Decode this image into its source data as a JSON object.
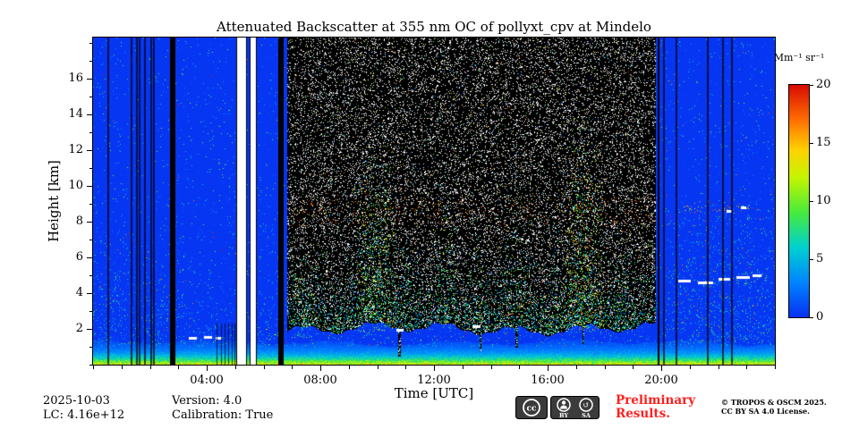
{
  "chart_data": {
    "type": "heatmap",
    "title": "Attenuated Backscatter at 355 nm OC of pollyxt_cpv at Mindelo",
    "xlabel": "Time [UTC]",
    "ylabel": "Height [km]",
    "xlim": [
      0,
      24
    ],
    "ylim": [
      0,
      18.3
    ],
    "x_ticks": [
      {
        "t": 4,
        "label": "04:00"
      },
      {
        "t": 8,
        "label": "08:00"
      },
      {
        "t": 12,
        "label": "12:00"
      },
      {
        "t": 16,
        "label": "16:00"
      },
      {
        "t": 20,
        "label": "20:00"
      }
    ],
    "x_minor_step_hours": 1,
    "y_ticks": [
      {
        "h": 2,
        "label": "2"
      },
      {
        "h": 4,
        "label": "4"
      },
      {
        "h": 6,
        "label": "6"
      },
      {
        "h": 8,
        "label": "8"
      },
      {
        "h": 10,
        "label": "10"
      },
      {
        "h": 12,
        "label": "12"
      },
      {
        "h": 14,
        "label": "14"
      },
      {
        "h": 16,
        "label": "16"
      }
    ],
    "y_minor_step_km": 1,
    "colorbar": {
      "label": "Mm⁻¹ sr⁻¹",
      "min": 0,
      "max": 20,
      "ticks": [
        0,
        5,
        10,
        15,
        20
      ]
    },
    "colormap": [
      [
        0.0,
        [
          8,
          48,
          242
        ]
      ],
      [
        0.15,
        [
          0,
          132,
          255
        ]
      ],
      [
        0.3,
        [
          0,
          208,
          208
        ]
      ],
      [
        0.45,
        [
          70,
          235,
          60
        ]
      ],
      [
        0.6,
        [
          195,
          245,
          0
        ]
      ],
      [
        0.72,
        [
          255,
          210,
          0
        ]
      ],
      [
        0.85,
        [
          255,
          110,
          0
        ]
      ],
      [
        1.0,
        [
          215,
          10,
          0
        ]
      ]
    ],
    "features": {
      "seed": 1337,
      "base_u": 0.01,
      "surface": {
        "peak": 12.5,
        "scale_km": 0.52,
        "top_km": 1.15,
        "top_var_km": 0.3
      },
      "night_speckle": {
        "p_base": 0.018,
        "p_low": 0.07,
        "scale_km": 2.4,
        "left_boost": {
          "t1": 3.2,
          "h": 7,
          "mult": 1.6
        },
        "right_boost": {
          "t0": 20.0,
          "h": 9,
          "mult": 1.8
        },
        "red_frac": 0.035
      },
      "day_block": {
        "t0": 6.85,
        "t1": 19.78,
        "bottom_km": 2.05,
        "bottom_var_km": 0.45,
        "white_p": 0.125,
        "sparse_color_p": 0.012,
        "lower_band": {
          "p": 0.22,
          "scale_km": 1.6,
          "umin": 0.12,
          "umax": 0.5,
          "red_frac": 0.05
        },
        "red_band": {
          "h0": 7.8,
          "h1": 9.4,
          "p": 0.022,
          "umin": 0.72,
          "umax": 1.0
        },
        "downspikes": [
          {
            "t": 10.78,
            "w": 0.1,
            "bottom_km": 0.5
          },
          {
            "t": 13.62,
            "w": 0.08,
            "bottom_km": 0.8
          },
          {
            "t": 14.9,
            "w": 0.07,
            "bottom_km": 1.0
          },
          {
            "t": 17.25,
            "w": 0.06,
            "bottom_km": 1.2
          }
        ]
      },
      "plumes": [
        {
          "t0": 0.15,
          "t1": 1.1,
          "top": 6.0,
          "base": 1.0,
          "density": 0.05,
          "umin": 0.08,
          "umax": 0.45,
          "red": 0.02
        },
        {
          "t0": 1.85,
          "t1": 2.6,
          "top": 5.5,
          "base": 1.0,
          "density": 0.05,
          "umin": 0.08,
          "umax": 0.45,
          "red": 0.02
        },
        {
          "t0": 3.0,
          "t1": 4.3,
          "top": 4.0,
          "base": 1.0,
          "density": 0.045,
          "umin": 0.08,
          "umax": 0.4,
          "red": 0.01
        },
        {
          "t0": 5.75,
          "t1": 6.5,
          "top": 5.0,
          "base": 1.0,
          "density": 0.06,
          "umin": 0.1,
          "umax": 0.45,
          "red": 0.02
        },
        {
          "t0": 7.0,
          "t1": 7.7,
          "top": 6.5,
          "base": 1.5,
          "density": 0.12,
          "umin": 0.15,
          "umax": 0.6,
          "red": 0.04
        },
        {
          "t0": 9.3,
          "t1": 10.6,
          "top": 12.5,
          "base": 1.8,
          "density": 0.16,
          "umin": 0.15,
          "umax": 0.7,
          "red": 0.09
        },
        {
          "t0": 10.6,
          "t1": 11.3,
          "top": 8.0,
          "base": 1.8,
          "density": 0.08,
          "umin": 0.12,
          "umax": 0.55,
          "red": 0.05
        },
        {
          "t0": 12.1,
          "t1": 12.6,
          "top": 12.0,
          "base": 1.8,
          "density": 0.07,
          "umin": 0.12,
          "umax": 0.6,
          "red": 0.06
        },
        {
          "t0": 13.2,
          "t1": 13.8,
          "top": 9.0,
          "base": 1.8,
          "density": 0.05,
          "umin": 0.12,
          "umax": 0.55,
          "red": 0.04
        },
        {
          "t0": 14.5,
          "t1": 15.2,
          "top": 12.0,
          "base": 1.8,
          "density": 0.07,
          "umin": 0.12,
          "umax": 0.6,
          "red": 0.05
        },
        {
          "t0": 15.8,
          "t1": 16.4,
          "top": 9.0,
          "base": 1.8,
          "density": 0.05,
          "umin": 0.12,
          "umax": 0.55,
          "red": 0.04
        },
        {
          "t0": 16.6,
          "t1": 17.9,
          "top": 14.5,
          "base": 1.8,
          "density": 0.17,
          "umin": 0.15,
          "umax": 0.8,
          "red": 0.11
        },
        {
          "t0": 18.3,
          "t1": 18.9,
          "top": 10.0,
          "base": 1.8,
          "density": 0.07,
          "umin": 0.12,
          "umax": 0.6,
          "red": 0.05
        },
        {
          "t0": 20.1,
          "t1": 23.9,
          "top": 9.0,
          "base": 1.2,
          "density": 0.04,
          "umin": 0.08,
          "umax": 0.5,
          "red": 0.02
        }
      ],
      "red_arc": {
        "t0": 20.3,
        "t1": 23.5,
        "h_km": 8.4,
        "amp_km": 0.5,
        "halfwidth_km": 0.35,
        "p": 0.04,
        "umin": 0.6,
        "umax": 1.0
      },
      "gaps": [
        {
          "t0": 5.05,
          "t1": 5.38
        },
        {
          "t0": 5.5,
          "t1": 5.72
        }
      ],
      "black_bars": [
        {
          "t0": 2.72,
          "t1": 2.88
        },
        {
          "t0": 6.52,
          "t1": 6.68
        },
        {
          "t0": 19.86,
          "t1": 19.92
        }
      ],
      "dark_lines": [
        0.5,
        1.32,
        1.5,
        1.62,
        1.78,
        2.02,
        2.1,
        20.05,
        20.5,
        21.6,
        22.15,
        22.45
      ],
      "surface_dark_lines": {
        "h_km": 2.3,
        "ts": [
          4.35,
          4.5,
          4.62,
          4.75,
          4.88,
          4.97
        ]
      },
      "clouds_white": [
        {
          "t0": 3.38,
          "t1": 3.62,
          "h": 1.5
        },
        {
          "t0": 3.9,
          "t1": 4.15,
          "h": 1.55
        },
        {
          "t0": 4.3,
          "t1": 4.5,
          "h": 1.5
        },
        {
          "t0": 10.68,
          "t1": 10.9,
          "h": 1.95
        },
        {
          "t0": 13.35,
          "t1": 13.6,
          "h": 2.15
        },
        {
          "t0": 20.6,
          "t1": 21.0,
          "h": 4.7
        },
        {
          "t0": 21.3,
          "t1": 21.8,
          "h": 4.6
        },
        {
          "t0": 22.0,
          "t1": 22.4,
          "h": 4.8
        },
        {
          "t0": 22.65,
          "t1": 23.1,
          "h": 4.9
        },
        {
          "t0": 23.2,
          "t1": 23.5,
          "h": 5.0
        },
        {
          "t0": 22.3,
          "t1": 22.45,
          "h": 8.6
        },
        {
          "t0": 22.8,
          "t1": 22.95,
          "h": 8.8
        }
      ]
    }
  },
  "footer": {
    "date": "2025-10-03",
    "lc": "LC: 4.16e+12",
    "version": "Version: 4.0",
    "calibration": "Calibration: True",
    "preliminary_line1": "Preliminary",
    "preliminary_line2": "Results.",
    "preliminary_color": "#ff1f1f",
    "copyright_line1": "© TROPOS & OSCM 2025.",
    "copyright_line2": "CC BY SA 4.0 License.",
    "license_badge": {
      "cc": "cc",
      "by": "BY",
      "sa": "SA"
    }
  }
}
